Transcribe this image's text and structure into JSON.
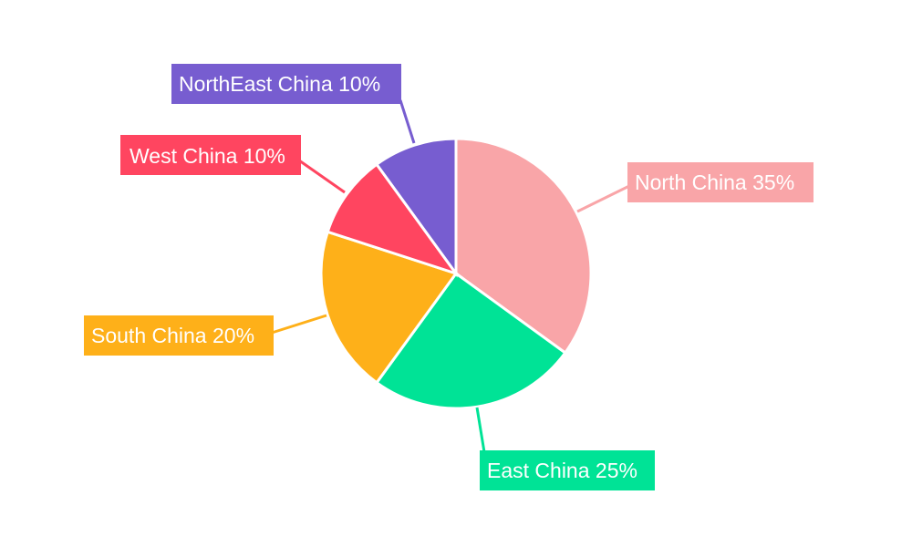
{
  "chart_data": {
    "type": "pie",
    "title": "",
    "start_angle_deg": 0,
    "direction": "clockwise",
    "legend": "none",
    "slices": [
      {
        "label": "North China",
        "value": 35,
        "text": "North China 35%",
        "color": "#f9a5a8"
      },
      {
        "label": "East China",
        "value": 25,
        "text": "East China 25%",
        "color": "#00e396"
      },
      {
        "label": "South China",
        "value": 20,
        "text": "South China 20%",
        "color": "#feb019"
      },
      {
        "label": "West China",
        "value": 10,
        "text": "West China 10%",
        "color": "#ff4560"
      },
      {
        "label": "NorthEast China",
        "value": 10,
        "text": "NorthEast China 10%",
        "color": "#775dd0"
      }
    ]
  }
}
